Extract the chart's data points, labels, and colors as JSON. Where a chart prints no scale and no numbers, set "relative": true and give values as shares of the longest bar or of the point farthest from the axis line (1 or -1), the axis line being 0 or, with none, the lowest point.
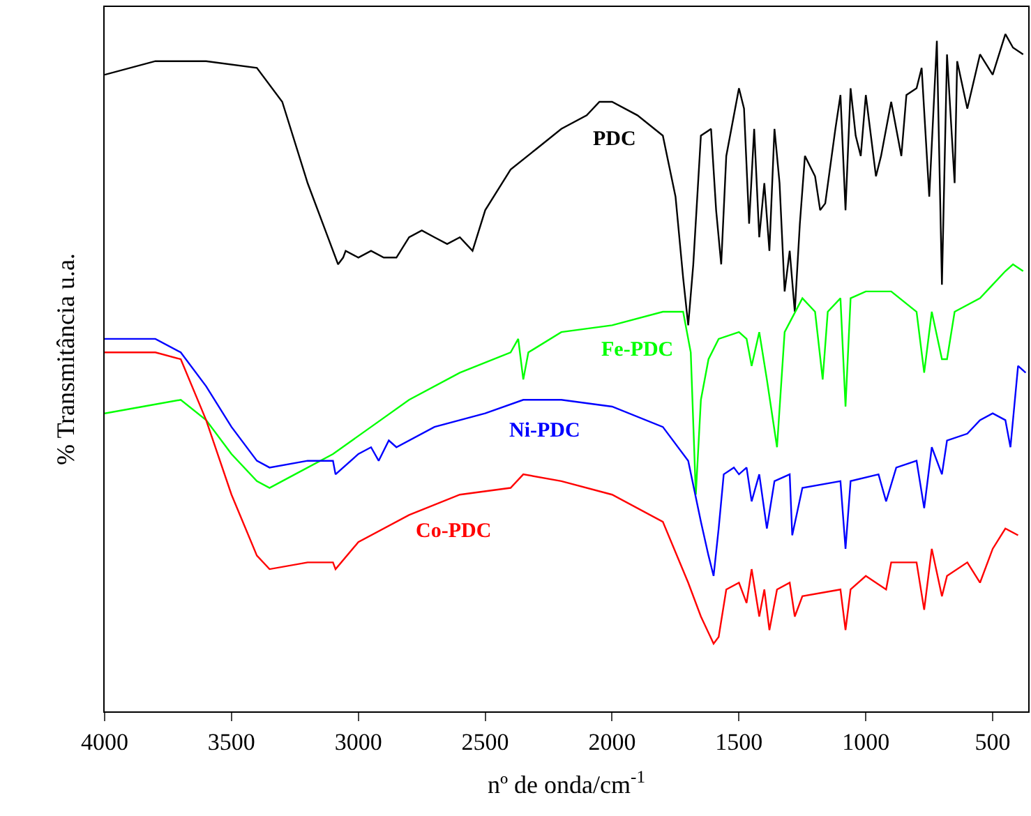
{
  "chart_data": {
    "type": "line",
    "relative": true,
    "xlabel": "nº de onda/cm$^{-1}$",
    "ylabel": "% Transmitância u.a.",
    "xlim": [
      4000,
      360
    ],
    "xticks": [
      4000,
      3500,
      3000,
      2500,
      2000,
      1500,
      1000,
      500
    ],
    "grid": false,
    "legend": false,
    "marker": "none",
    "line_style": "solid",
    "series": [
      {
        "name": "PDC",
        "color": "#000000",
        "x": [
          4000,
          3800,
          3600,
          3400,
          3300,
          3200,
          3120,
          3080,
          3060,
          3050,
          3000,
          2950,
          2900,
          2850,
          2800,
          2750,
          2700,
          2650,
          2600,
          2550,
          2500,
          2400,
          2300,
          2200,
          2100,
          2050,
          2000,
          1900,
          1800,
          1750,
          1720,
          1700,
          1680,
          1650,
          1610,
          1590,
          1570,
          1550,
          1500,
          1480,
          1460,
          1440,
          1420,
          1400,
          1380,
          1360,
          1340,
          1320,
          1300,
          1280,
          1260,
          1240,
          1200,
          1180,
          1160,
          1120,
          1100,
          1080,
          1060,
          1040,
          1020,
          1000,
          960,
          940,
          900,
          860,
          840,
          800,
          780,
          750,
          720,
          700,
          680,
          650,
          640,
          600,
          550,
          500,
          450,
          420,
          380
        ],
        "values": [
          0.94,
          0.96,
          0.96,
          0.95,
          0.9,
          0.78,
          0.7,
          0.66,
          0.67,
          0.68,
          0.67,
          0.68,
          0.67,
          0.67,
          0.7,
          0.71,
          0.7,
          0.69,
          0.7,
          0.68,
          0.74,
          0.8,
          0.83,
          0.86,
          0.88,
          0.9,
          0.9,
          0.88,
          0.85,
          0.76,
          0.64,
          0.57,
          0.66,
          0.85,
          0.86,
          0.74,
          0.66,
          0.82,
          0.92,
          0.89,
          0.72,
          0.86,
          0.7,
          0.78,
          0.68,
          0.86,
          0.78,
          0.62,
          0.68,
          0.59,
          0.72,
          0.82,
          0.79,
          0.74,
          0.75,
          0.86,
          0.91,
          0.74,
          0.92,
          0.85,
          0.82,
          0.91,
          0.79,
          0.82,
          0.9,
          0.82,
          0.91,
          0.92,
          0.95,
          0.76,
          0.99,
          0.63,
          0.97,
          0.78,
          0.96,
          0.89,
          0.97,
          0.94,
          1.0,
          0.98,
          0.97
        ]
      },
      {
        "name": "Fe-PDC",
        "color": "#00ff00",
        "x": [
          4000,
          3850,
          3700,
          3600,
          3500,
          3400,
          3350,
          3250,
          3100,
          2950,
          2800,
          2600,
          2400,
          2370,
          2350,
          2330,
          2200,
          2000,
          1800,
          1720,
          1690,
          1670,
          1650,
          1620,
          1580,
          1500,
          1470,
          1450,
          1420,
          1390,
          1350,
          1320,
          1250,
          1200,
          1170,
          1150,
          1100,
          1080,
          1060,
          1000,
          900,
          800,
          770,
          740,
          700,
          680,
          650,
          550,
          500,
          450,
          420,
          380
        ],
        "values": [
          0.44,
          0.45,
          0.46,
          0.43,
          0.38,
          0.34,
          0.33,
          0.35,
          0.38,
          0.42,
          0.46,
          0.5,
          0.53,
          0.55,
          0.49,
          0.53,
          0.56,
          0.57,
          0.59,
          0.59,
          0.53,
          0.32,
          0.46,
          0.52,
          0.55,
          0.56,
          0.55,
          0.51,
          0.56,
          0.49,
          0.39,
          0.56,
          0.61,
          0.59,
          0.49,
          0.59,
          0.61,
          0.45,
          0.61,
          0.62,
          0.62,
          0.59,
          0.5,
          0.59,
          0.52,
          0.52,
          0.59,
          0.61,
          0.63,
          0.65,
          0.66,
          0.65
        ]
      },
      {
        "name": "Ni-PDC",
        "color": "#0000ff",
        "x": [
          4000,
          3800,
          3700,
          3600,
          3500,
          3400,
          3350,
          3200,
          3100,
          3090,
          3000,
          2950,
          2920,
          2880,
          2850,
          2700,
          2500,
          2350,
          2200,
          2000,
          1800,
          1700,
          1650,
          1620,
          1600,
          1580,
          1560,
          1520,
          1500,
          1470,
          1450,
          1420,
          1390,
          1360,
          1300,
          1290,
          1250,
          1100,
          1080,
          1060,
          950,
          920,
          880,
          800,
          770,
          740,
          700,
          680,
          600,
          550,
          500,
          450,
          430,
          400,
          370
        ],
        "values": [
          0.55,
          0.55,
          0.53,
          0.48,
          0.42,
          0.37,
          0.36,
          0.37,
          0.37,
          0.35,
          0.38,
          0.39,
          0.37,
          0.4,
          0.39,
          0.42,
          0.44,
          0.46,
          0.46,
          0.45,
          0.42,
          0.37,
          0.28,
          0.23,
          0.2,
          0.27,
          0.35,
          0.36,
          0.35,
          0.36,
          0.31,
          0.35,
          0.27,
          0.34,
          0.35,
          0.26,
          0.33,
          0.34,
          0.24,
          0.34,
          0.35,
          0.31,
          0.36,
          0.37,
          0.3,
          0.39,
          0.35,
          0.4,
          0.41,
          0.43,
          0.44,
          0.43,
          0.39,
          0.51,
          0.5
        ]
      },
      {
        "name": "Co-PDC",
        "color": "#ff0000",
        "x": [
          4000,
          3800,
          3700,
          3600,
          3500,
          3400,
          3350,
          3200,
          3100,
          3090,
          3000,
          2800,
          2600,
          2400,
          2350,
          2200,
          2000,
          1800,
          1700,
          1650,
          1600,
          1580,
          1550,
          1500,
          1470,
          1450,
          1420,
          1400,
          1380,
          1350,
          1300,
          1280,
          1250,
          1100,
          1080,
          1060,
          1000,
          920,
          900,
          800,
          770,
          740,
          700,
          680,
          600,
          550,
          500,
          450,
          400
        ],
        "values": [
          0.53,
          0.53,
          0.52,
          0.43,
          0.32,
          0.23,
          0.21,
          0.22,
          0.22,
          0.21,
          0.25,
          0.29,
          0.32,
          0.33,
          0.35,
          0.34,
          0.32,
          0.28,
          0.19,
          0.14,
          0.1,
          0.11,
          0.18,
          0.19,
          0.16,
          0.21,
          0.14,
          0.18,
          0.12,
          0.18,
          0.19,
          0.14,
          0.17,
          0.18,
          0.12,
          0.18,
          0.2,
          0.18,
          0.22,
          0.22,
          0.15,
          0.24,
          0.17,
          0.2,
          0.22,
          0.19,
          0.24,
          0.27,
          0.26
        ]
      }
    ]
  }
}
